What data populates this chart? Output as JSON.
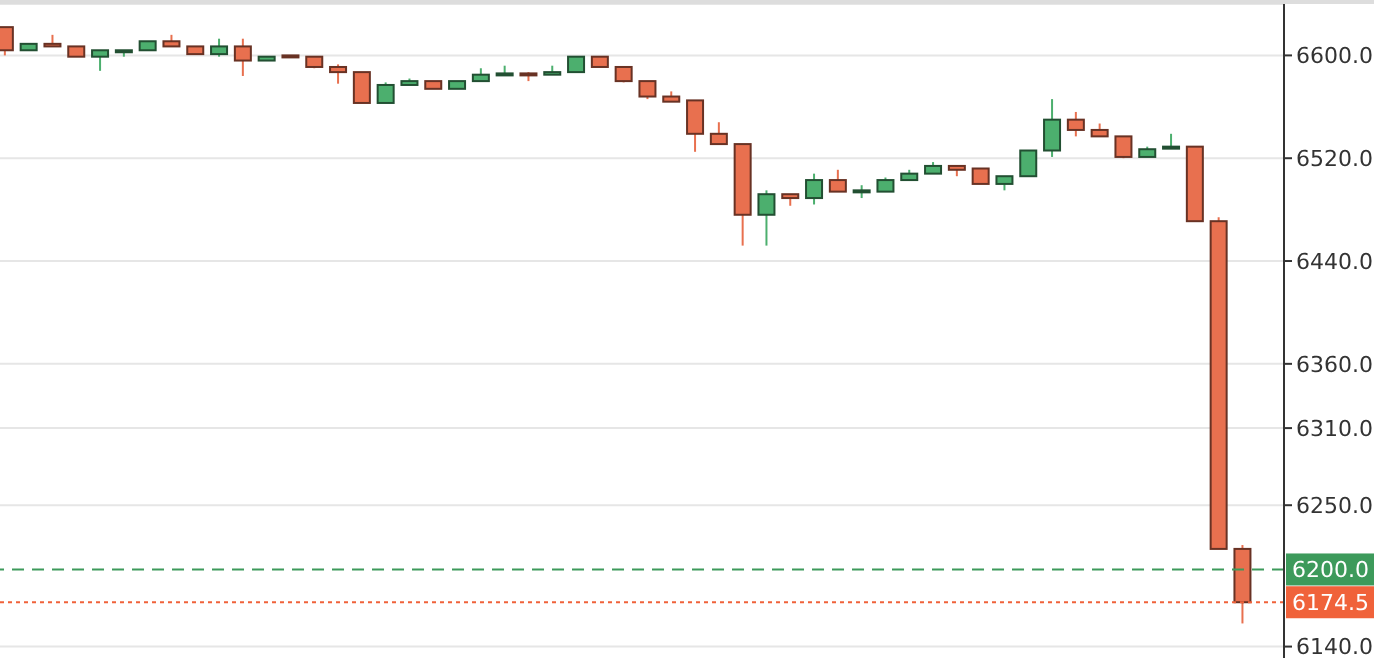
{
  "chart_data": {
    "type": "candlestick",
    "categories": [
      null,
      null,
      null,
      null,
      null,
      null,
      null,
      null,
      null,
      null,
      null,
      null,
      null,
      null,
      null,
      null,
      null,
      null,
      null,
      null,
      null,
      null,
      null,
      null,
      null,
      null,
      null,
      null,
      null,
      null,
      null,
      null,
      null,
      null,
      null,
      null,
      null,
      null,
      null,
      null,
      null,
      null,
      null,
      null,
      null,
      null,
      null,
      null,
      null,
      null,
      null,
      null,
      null
    ],
    "ohlc": [
      [
        6622,
        6622,
        6600,
        6604
      ],
      [
        6604,
        6609,
        6604,
        6609
      ],
      [
        6609,
        6616,
        6607,
        6607
      ],
      [
        6607,
        6607,
        6599,
        6599
      ],
      [
        6599,
        6604,
        6588,
        6604
      ],
      [
        6604,
        6604,
        6599,
        6604
      ],
      [
        6604,
        6611,
        6604,
        6611
      ],
      [
        6611,
        6616,
        6607,
        6607
      ],
      [
        6607,
        6607,
        6601,
        6601
      ],
      [
        6601,
        6613,
        6599,
        6607
      ],
      [
        6607,
        6613,
        6584,
        6596
      ],
      [
        6596,
        6599,
        6596,
        6599
      ],
      [
        6600,
        6600,
        6599,
        6599
      ],
      [
        6599,
        6599,
        6590,
        6591
      ],
      [
        6591,
        6593,
        6578,
        6587
      ],
      [
        6587,
        6587,
        6563,
        6563
      ],
      [
        6563,
        6579,
        6563,
        6577
      ],
      [
        6577,
        6582,
        6577,
        6580
      ],
      [
        6580,
        6580,
        6574,
        6574
      ],
      [
        6574,
        6580,
        6574,
        6580
      ],
      [
        6580,
        6590,
        6580,
        6585
      ],
      [
        6585,
        6592,
        6585,
        6586
      ],
      [
        6586,
        6587,
        6580,
        6585
      ],
      [
        6585,
        6592,
        6585,
        6587
      ],
      [
        6587,
        6599,
        6587,
        6599
      ],
      [
        6599,
        6599,
        6591,
        6591
      ],
      [
        6591,
        6591,
        6579,
        6580
      ],
      [
        6580,
        6580,
        6566,
        6568
      ],
      [
        6568,
        6572,
        6564,
        6564
      ],
      [
        6565,
        6565,
        6525,
        6539
      ],
      [
        6539,
        6548,
        6531,
        6531
      ],
      [
        6531,
        6531,
        6452,
        6476
      ],
      [
        6476,
        6495,
        6452,
        6492
      ],
      [
        6492,
        6492,
        6483,
        6489
      ],
      [
        6489,
        6508,
        6484,
        6503
      ],
      [
        6503,
        6511,
        6494,
        6494
      ],
      [
        6494,
        6499,
        6489,
        6495
      ],
      [
        6494,
        6505,
        6494,
        6503
      ],
      [
        6503,
        6511,
        6503,
        6508
      ],
      [
        6508,
        6517,
        6508,
        6514
      ],
      [
        6514,
        6514,
        6506,
        6511
      ],
      [
        6512,
        6512,
        6500,
        6500
      ],
      [
        6500,
        6506,
        6495,
        6506
      ],
      [
        6506,
        6526,
        6506,
        6526
      ],
      [
        6526,
        6566,
        6521,
        6550
      ],
      [
        6550,
        6556,
        6537,
        6542
      ],
      [
        6542,
        6547,
        6537,
        6537
      ],
      [
        6537,
        6537,
        6520,
        6521
      ],
      [
        6521,
        6529,
        6521,
        6527
      ],
      [
        6528,
        6539,
        6528,
        6529
      ],
      [
        6529,
        6529,
        6471,
        6471
      ],
      [
        6471,
        6474,
        6216,
        6216
      ],
      [
        6216,
        6219,
        6158,
        6174.5
      ]
    ],
    "colors": [
      "#e8704f",
      "#4caf6e",
      "#e8704f",
      "#e8704f",
      "#4caf6e",
      "#4caf6e",
      "#4caf6e",
      "#e8704f",
      "#e8704f",
      "#4caf6e",
      "#e8704f",
      "#4caf6e",
      "#e8704f",
      "#e8704f",
      "#e8704f",
      "#e8704f",
      "#4caf6e",
      "#4caf6e",
      "#e8704f",
      "#4caf6e",
      "#4caf6e",
      "#4caf6e",
      "#e8704f",
      "#4caf6e",
      "#4caf6e",
      "#e8704f",
      "#e8704f",
      "#e8704f",
      "#e8704f",
      "#e8704f",
      "#e8704f",
      "#e8704f",
      "#4caf6e",
      "#e8704f",
      "#4caf6e",
      "#e8704f",
      "#4caf6e",
      "#4caf6e",
      "#4caf6e",
      "#4caf6e",
      "#e8704f",
      "#e8704f",
      "#4caf6e",
      "#4caf6e",
      "#4caf6e",
      "#e8704f",
      "#e8704f",
      "#e8704f",
      "#4caf6e",
      "#4caf6e",
      "#e8704f",
      "#e8704f",
      "#e8704f"
    ],
    "ylim": [
      6128,
      6640
    ],
    "yticks": [
      {
        "value": 6140,
        "label": "6140.0"
      },
      {
        "value": 6250,
        "label": "6250.0"
      },
      {
        "value": 6310,
        "label": "6310.0"
      },
      {
        "value": 6360,
        "label": "6360.0"
      },
      {
        "value": 6440,
        "label": "6440.0"
      },
      {
        "value": 6520,
        "label": "6520.0"
      },
      {
        "value": 6600,
        "label": "6600.0"
      }
    ],
    "ref_lines": [
      {
        "axis": "y",
        "value": 6200,
        "label": "6200.0",
        "color": "#3d9a5b",
        "line_style": "dashed"
      },
      {
        "axis": "y",
        "value": 6174.5,
        "label": "6174.5",
        "color": "#f0623a",
        "line_style": "dotted"
      }
    ],
    "grid": "y",
    "tick_labels": "y"
  }
}
